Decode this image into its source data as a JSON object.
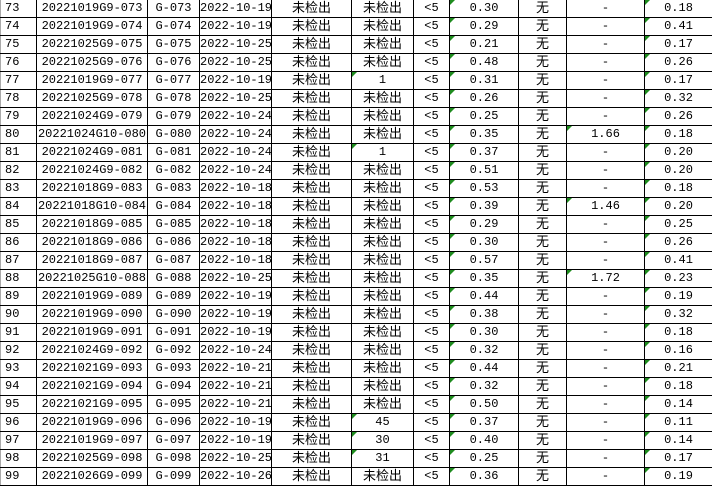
{
  "flag_color": "#1e8c1e",
  "rows": [
    [
      "73",
      "20221019G9-073",
      "G-073",
      "2022-10-19",
      "未检出",
      "未检出",
      "<5",
      "0.30",
      "无",
      "-",
      "0.18"
    ],
    [
      "74",
      "20221019G9-074",
      "G-074",
      "2022-10-19",
      "未检出",
      "未检出",
      "<5",
      "0.29",
      "无",
      "-",
      "0.41"
    ],
    [
      "75",
      "20221025G9-075",
      "G-075",
      "2022-10-25",
      "未检出",
      "未检出",
      "<5",
      "0.21",
      "无",
      "-",
      "0.17"
    ],
    [
      "76",
      "20221025G9-076",
      "G-076",
      "2022-10-25",
      "未检出",
      "未检出",
      "<5",
      "0.48",
      "无",
      "-",
      "0.26"
    ],
    [
      "77",
      "20221019G9-077",
      "G-077",
      "2022-10-19",
      "未检出",
      "1",
      "<5",
      "0.31",
      "无",
      "-",
      "0.17"
    ],
    [
      "78",
      "20221025G9-078",
      "G-078",
      "2022-10-25",
      "未检出",
      "未检出",
      "<5",
      "0.26",
      "无",
      "-",
      "0.32"
    ],
    [
      "79",
      "20221024G9-079",
      "G-079",
      "2022-10-24",
      "未检出",
      "未检出",
      "<5",
      "0.25",
      "无",
      "-",
      "0.26"
    ],
    [
      "80",
      "20221024G10-080",
      "G-080",
      "2022-10-24",
      "未检出",
      "未检出",
      "<5",
      "0.35",
      "无",
      "1.66",
      "0.18"
    ],
    [
      "81",
      "20221024G9-081",
      "G-081",
      "2022-10-24",
      "未检出",
      "1",
      "<5",
      "0.37",
      "无",
      "-",
      "0.20"
    ],
    [
      "82",
      "20221024G9-082",
      "G-082",
      "2022-10-24",
      "未检出",
      "未检出",
      "<5",
      "0.51",
      "无",
      "-",
      "0.20"
    ],
    [
      "83",
      "20221018G9-083",
      "G-083",
      "2022-10-18",
      "未检出",
      "未检出",
      "<5",
      "0.53",
      "无",
      "-",
      "0.18"
    ],
    [
      "84",
      "20221018G10-084",
      "G-084",
      "2022-10-18",
      "未检出",
      "未检出",
      "<5",
      "0.39",
      "无",
      "1.46",
      "0.20"
    ],
    [
      "85",
      "20221018G9-085",
      "G-085",
      "2022-10-18",
      "未检出",
      "未检出",
      "<5",
      "0.29",
      "无",
      "-",
      "0.25"
    ],
    [
      "86",
      "20221018G9-086",
      "G-086",
      "2022-10-18",
      "未检出",
      "未检出",
      "<5",
      "0.30",
      "无",
      "-",
      "0.26"
    ],
    [
      "87",
      "20221018G9-087",
      "G-087",
      "2022-10-18",
      "未检出",
      "未检出",
      "<5",
      "0.57",
      "无",
      "-",
      "0.41"
    ],
    [
      "88",
      "20221025G10-088",
      "G-088",
      "2022-10-25",
      "未检出",
      "未检出",
      "<5",
      "0.35",
      "无",
      "1.72",
      "0.23"
    ],
    [
      "89",
      "20221019G9-089",
      "G-089",
      "2022-10-19",
      "未检出",
      "未检出",
      "<5",
      "0.44",
      "无",
      "-",
      "0.19"
    ],
    [
      "90",
      "20221019G9-090",
      "G-090",
      "2022-10-19",
      "未检出",
      "未检出",
      "<5",
      "0.38",
      "无",
      "-",
      "0.32"
    ],
    [
      "91",
      "20221019G9-091",
      "G-091",
      "2022-10-19",
      "未检出",
      "未检出",
      "<5",
      "0.30",
      "无",
      "-",
      "0.18"
    ],
    [
      "92",
      "20221024G9-092",
      "G-092",
      "2022-10-24",
      "未检出",
      "未检出",
      "<5",
      "0.32",
      "无",
      "-",
      "0.16"
    ],
    [
      "93",
      "20221021G9-093",
      "G-093",
      "2022-10-21",
      "未检出",
      "未检出",
      "<5",
      "0.44",
      "无",
      "-",
      "0.21"
    ],
    [
      "94",
      "20221021G9-094",
      "G-094",
      "2022-10-21",
      "未检出",
      "未检出",
      "<5",
      "0.32",
      "无",
      "-",
      "0.18"
    ],
    [
      "95",
      "20221021G9-095",
      "G-095",
      "2022-10-21",
      "未检出",
      "未检出",
      "<5",
      "0.50",
      "无",
      "-",
      "0.14"
    ],
    [
      "96",
      "20221019G9-096",
      "G-096",
      "2022-10-19",
      "未检出",
      "45",
      "<5",
      "0.37",
      "无",
      "-",
      "0.11"
    ],
    [
      "97",
      "20221019G9-097",
      "G-097",
      "2022-10-19",
      "未检出",
      "30",
      "<5",
      "0.40",
      "无",
      "-",
      "0.14"
    ],
    [
      "98",
      "20221025G9-098",
      "G-098",
      "2022-10-25",
      "未检出",
      "31",
      "<5",
      "0.25",
      "无",
      "-",
      "0.17"
    ],
    [
      "99",
      "20221026G9-099",
      "G-099",
      "2022-10-26",
      "未检出",
      "未检出",
      "<5",
      "0.36",
      "无",
      "-",
      "0.19"
    ]
  ]
}
